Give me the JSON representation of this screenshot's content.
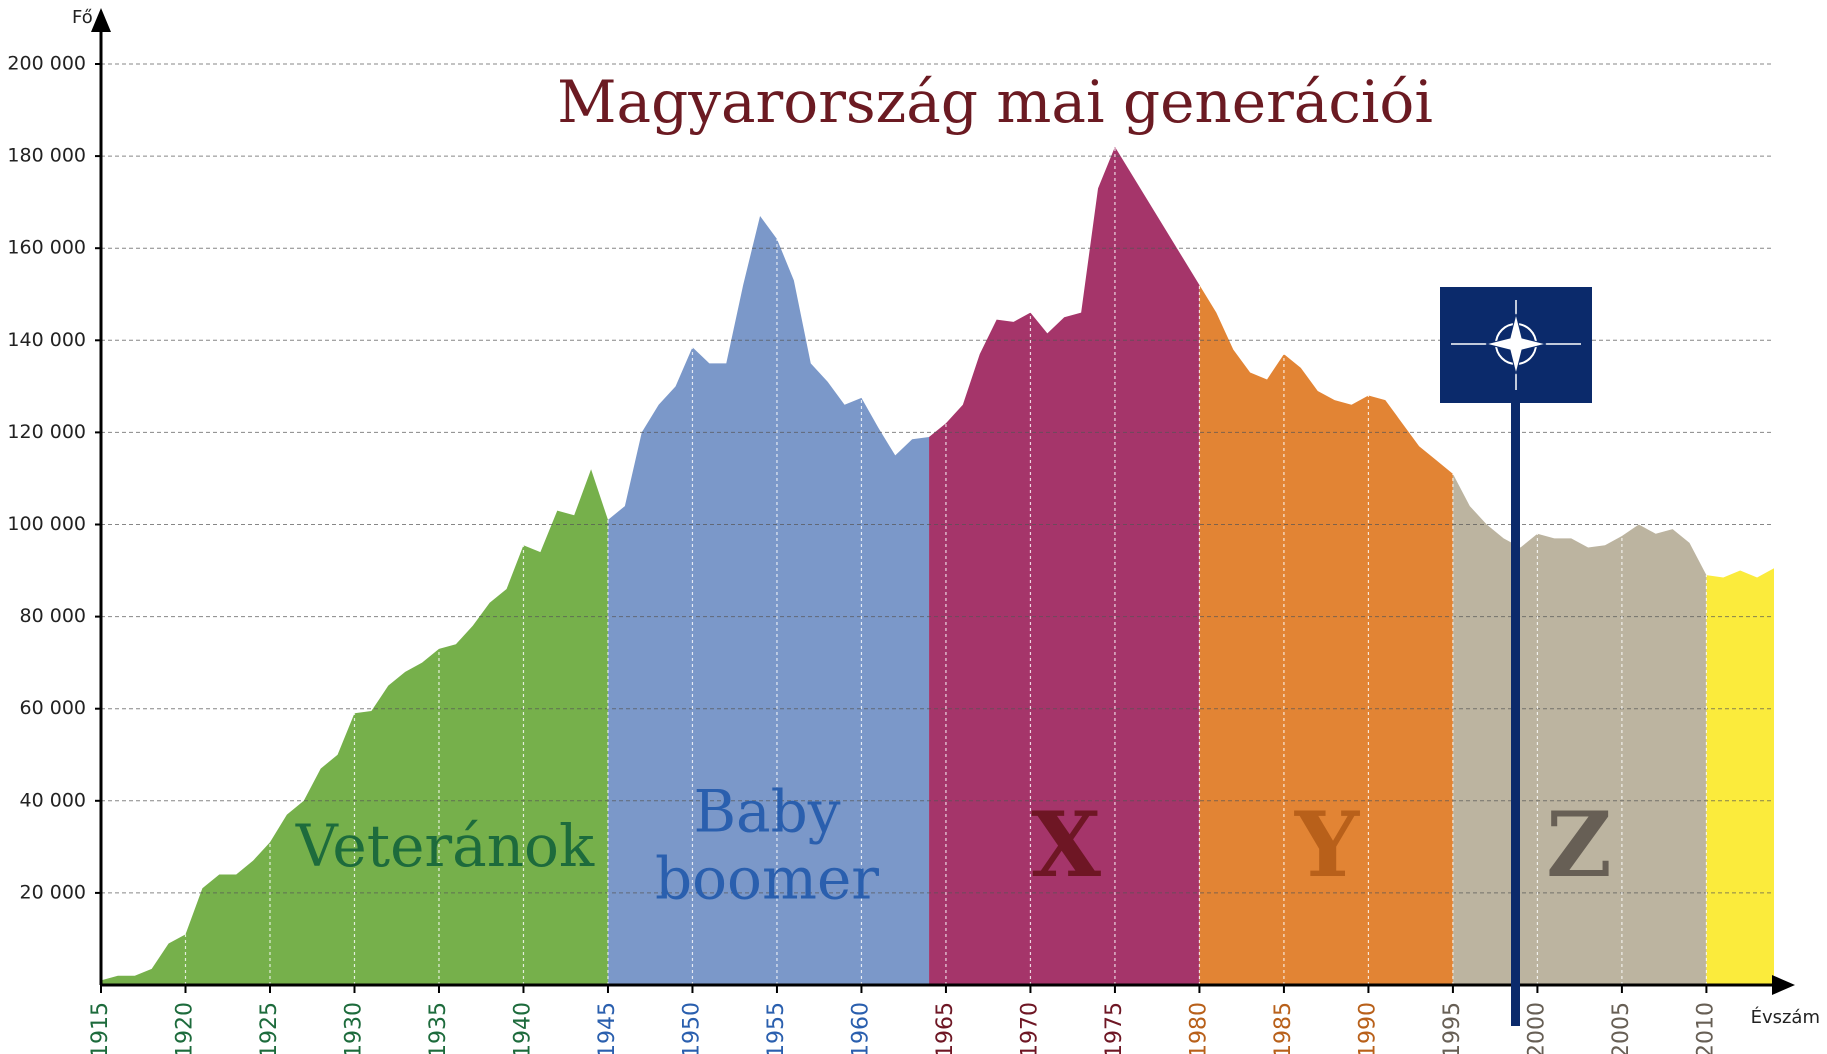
{
  "chart_data": {
    "type": "area",
    "title": "Magyarország mai generációi",
    "y_label": "Fő",
    "x_label": "Évszám",
    "xlim": [
      1915,
      2014
    ],
    "ylim": [
      0,
      200000
    ],
    "xticks": [
      1915,
      1920,
      1925,
      1930,
      1935,
      1940,
      1945,
      1950,
      1955,
      1960,
      1965,
      1970,
      1975,
      1980,
      1985,
      1990,
      1995,
      2000,
      2005,
      2010
    ],
    "yticks": [
      {
        "value": 20000,
        "label": "20 000"
      },
      {
        "value": 40000,
        "label": "40 000"
      },
      {
        "value": 60000,
        "label": "60 000"
      },
      {
        "value": 80000,
        "label": "80 000"
      },
      {
        "value": 100000,
        "label": "100 000"
      },
      {
        "value": 120000,
        "label": "120 000"
      },
      {
        "value": 140000,
        "label": "140 000"
      },
      {
        "value": 160000,
        "label": "160 000"
      },
      {
        "value": 180000,
        "label": "180 000"
      },
      {
        "value": 200000,
        "label": "200 000"
      }
    ],
    "grid": true,
    "x": [
      1915,
      1916,
      1917,
      1918,
      1919,
      1920,
      1921,
      1922,
      1923,
      1924,
      1925,
      1926,
      1927,
      1928,
      1929,
      1930,
      1931,
      1932,
      1933,
      1934,
      1935,
      1936,
      1937,
      1938,
      1939,
      1940,
      1941,
      1942,
      1943,
      1944,
      1945,
      1946,
      1947,
      1948,
      1949,
      1950,
      1951,
      1952,
      1953,
      1954,
      1955,
      1956,
      1957,
      1958,
      1959,
      1960,
      1961,
      1962,
      1963,
      1964,
      1965,
      1966,
      1967,
      1968,
      1969,
      1970,
      1971,
      1972,
      1973,
      1974,
      1975,
      1976,
      1977,
      1978,
      1979,
      1980,
      1981,
      1982,
      1983,
      1984,
      1985,
      1986,
      1987,
      1988,
      1989,
      1990,
      1991,
      1992,
      1993,
      1994,
      1995,
      1996,
      1997,
      1998,
      1999,
      2000,
      2001,
      2002,
      2003,
      2004,
      2005,
      2006,
      2007,
      2008,
      2009,
      2010,
      2011,
      2012,
      2013,
      2014
    ],
    "values": [
      1000,
      2000,
      2000,
      3500,
      9000,
      11000,
      21000,
      24000,
      24000,
      27000,
      31000,
      37000,
      40000,
      47000,
      50000,
      59000,
      59500,
      65000,
      68000,
      70000,
      73000,
      74000,
      78000,
      83000,
      86000,
      95500,
      94000,
      103000,
      102000,
      112000,
      101000,
      104000,
      120000,
      126000,
      130000,
      138500,
      135000,
      135000,
      152000,
      167000,
      162000,
      153000,
      135000,
      131000,
      126000,
      127500,
      121000,
      115000,
      118500,
      119000,
      122000,
      126000,
      137000,
      144500,
      144000,
      146000,
      141500,
      145000,
      146000,
      173000,
      182000,
      176000,
      170000,
      164000,
      158000,
      152000,
      146000,
      138000,
      133000,
      131500,
      137000,
      134000,
      129000,
      127000,
      126000,
      128000,
      127000,
      122000,
      117000,
      114000,
      111000,
      104000,
      100000,
      97000,
      95000,
      98000,
      97000,
      97000,
      95000,
      95500,
      97500,
      100000,
      98000,
      99000,
      96000,
      89000,
      88500,
      90000,
      88500,
      90500
    ],
    "segments": [
      {
        "label_lines": [
          "Veteránok"
        ],
        "start": 1915,
        "end": 1945,
        "color": "#76b04b",
        "text_color": "#1d6b3c"
      },
      {
        "label_lines": [
          "Baby",
          "boomer"
        ],
        "start": 1945,
        "end": 1964,
        "color": "#7b98c9",
        "text_color": "#2a5fae"
      },
      {
        "label_lines": [
          "X"
        ],
        "start": 1964,
        "end": 1980,
        "color": "#a5356a",
        "text_color": "#6e1624"
      },
      {
        "label_lines": [
          "Y"
        ],
        "start": 1980,
        "end": 1995,
        "color": "#e28434",
        "text_color": "#b8601a"
      },
      {
        "label_lines": [
          "Z"
        ],
        "start": 1995,
        "end": 2010,
        "color": "#bcb4a0",
        "text_color": "#675f55"
      },
      {
        "start": 2010,
        "end": 2014,
        "color": "#fbeb3c"
      }
    ]
  }
}
